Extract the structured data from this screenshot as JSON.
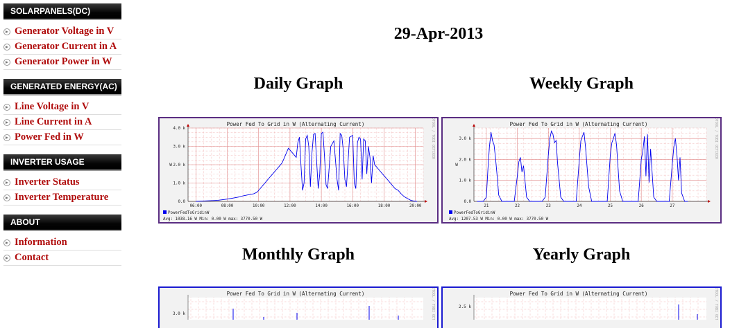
{
  "sidebar": {
    "sections": [
      {
        "title": "SOLARPANELS(DC)",
        "items": [
          "Generator Voltage in V",
          "Generator Current in A",
          "Generator Power in W"
        ]
      },
      {
        "title": "GENERATED ENERGY(AC)",
        "items": [
          "Line Voltage in V",
          "Line Current in A",
          "Power Fed in W"
        ]
      },
      {
        "title": "INVERTER USAGE",
        "items": [
          "Inverter Status",
          "Inverter Temperature"
        ]
      },
      {
        "title": "ABOUT",
        "items": [
          "Information",
          "Contact"
        ]
      }
    ]
  },
  "main": {
    "date": "29-Apr-2013",
    "graph_titles": [
      "Daily Graph",
      "Weekly Graph",
      "Monthly Graph",
      "Yearly Graph"
    ]
  },
  "colors": {
    "link": "#b00c0c",
    "daily_border": "#5a2d82",
    "weekly_border": "#5a2d82",
    "lower_border": "#1a1ad0",
    "series": "#0000ee",
    "grid": "#f0b4b4"
  },
  "chart_data": [
    {
      "type": "line",
      "title": "Power Fed To Grid in W (Alternating Current)",
      "ylabel": "W",
      "y_tick_labels": [
        "0.0",
        "1.0 k",
        "2.0 k",
        "3.0 k",
        "4.0 k"
      ],
      "x_tick_labels": [
        "06:00",
        "08:00",
        "10:00",
        "12:00",
        "14:00",
        "16:00",
        "18:00",
        "20:00"
      ],
      "ylim": [
        0,
        4000
      ],
      "xlim": [
        5.5,
        20.5
      ],
      "legend": "PowerFedToGridinW",
      "stats": "Avg: 1038.16 W    Min:    0.00 W    max: 3770.50 W",
      "side_text": "RRDTOOL / TOBI OETIKER",
      "series": [
        {
          "name": "PowerFedToGridinW",
          "x": [
            6.0,
            6.5,
            7.0,
            7.4,
            7.8,
            8.2,
            8.5,
            8.8,
            9.0,
            9.3,
            9.5,
            9.7,
            9.9,
            10.1,
            10.3,
            10.5,
            10.7,
            10.9,
            11.1,
            11.3,
            11.5,
            11.6,
            11.7,
            11.8,
            11.9,
            12.0,
            12.2,
            12.4,
            12.5,
            12.6,
            12.7,
            12.8,
            12.9,
            13.0,
            13.1,
            13.2,
            13.3,
            13.4,
            13.5,
            13.6,
            13.7,
            13.8,
            13.9,
            14.0,
            14.1,
            14.2,
            14.3,
            14.4,
            14.6,
            14.8,
            15.0,
            15.1,
            15.2,
            15.3,
            15.4,
            15.5,
            15.6,
            15.8,
            16.0,
            16.1,
            16.2,
            16.3,
            16.4,
            16.5,
            16.6,
            16.7,
            16.8,
            16.9,
            17.0,
            17.1,
            17.2,
            17.3,
            17.4,
            17.5,
            17.7,
            17.9,
            18.1,
            18.3,
            18.5,
            18.7,
            18.9,
            19.1,
            19.3,
            19.5,
            19.7,
            19.9,
            20.1
          ],
          "values": [
            0,
            20,
            40,
            60,
            100,
            150,
            200,
            250,
            300,
            350,
            380,
            420,
            500,
            700,
            900,
            1100,
            1300,
            1500,
            1700,
            1900,
            2100,
            2300,
            2500,
            2700,
            2900,
            2800,
            2600,
            2400,
            3200,
            3500,
            2000,
            600,
            1000,
            3400,
            3600,
            3000,
            800,
            2600,
            3650,
            3700,
            2200,
            700,
            1500,
            3700,
            3770,
            2500,
            900,
            700,
            3000,
            3300,
            1200,
            600,
            3700,
            3600,
            2800,
            1200,
            800,
            3500,
            3600,
            1000,
            700,
            3200,
            3500,
            3400,
            1200,
            3400,
            3300,
            1500,
            3000,
            2400,
            1000,
            2500,
            2000,
            1900,
            1700,
            1500,
            1300,
            1100,
            900,
            700,
            600,
            400,
            250,
            150,
            60,
            20,
            0
          ]
        }
      ]
    },
    {
      "type": "line",
      "title": "Power Fed To Grid in W (Alternating Current)",
      "ylabel": "W",
      "y_tick_labels": [
        "0.0",
        "1.0 k",
        "2.0 k",
        "3.0 k"
      ],
      "x_tick_labels": [
        "21",
        "22",
        "23",
        "24",
        "25",
        "26",
        "27"
      ],
      "ylim": [
        0,
        3500
      ],
      "xlim": [
        20.6,
        28.1
      ],
      "legend": "PowerFedToGridinW",
      "stats": "Avg: 1207.53 W    Min:    0.00 W    max: 3770.50 W",
      "side_text": "RRDTOOL / TOBI OETIKER",
      "series": [
        {
          "name": "PowerFedToGridinW",
          "x": [
            20.7,
            20.9,
            21.0,
            21.05,
            21.1,
            21.15,
            21.2,
            21.25,
            21.3,
            21.35,
            21.4,
            21.5,
            21.6,
            21.7,
            21.8,
            21.9,
            22.0,
            22.05,
            22.1,
            22.15,
            22.2,
            22.3,
            22.4,
            22.5,
            22.6,
            22.7,
            22.8,
            22.9,
            23.0,
            23.05,
            23.1,
            23.15,
            23.2,
            23.25,
            23.3,
            23.4,
            23.5,
            23.6,
            23.7,
            23.8,
            23.9,
            24.0,
            24.05,
            24.1,
            24.15,
            24.2,
            24.3,
            24.4,
            24.5,
            24.6,
            24.7,
            24.8,
            24.9,
            25.0,
            25.05,
            25.1,
            25.15,
            25.2,
            25.3,
            25.4,
            25.5,
            25.6,
            25.7,
            25.8,
            25.9,
            26.0,
            26.05,
            26.1,
            26.15,
            26.2,
            26.25,
            26.3,
            26.4,
            26.5,
            26.6,
            26.7,
            26.8,
            26.9,
            27.0,
            27.05,
            27.1,
            27.15,
            27.2,
            27.25,
            27.3,
            27.4,
            27.5
          ],
          "values": [
            0,
            0,
            200,
            1500,
            2600,
            3300,
            2900,
            2700,
            2000,
            1200,
            300,
            0,
            0,
            0,
            0,
            0,
            1200,
            1900,
            2100,
            1400,
            1700,
            200,
            0,
            0,
            0,
            0,
            0,
            200,
            2200,
            3000,
            3350,
            3200,
            2800,
            2900,
            1800,
            200,
            0,
            0,
            0,
            0,
            0,
            2000,
            2900,
            3100,
            3300,
            2600,
            700,
            0,
            0,
            0,
            0,
            0,
            0,
            2200,
            2800,
            3000,
            3250,
            2700,
            500,
            0,
            0,
            0,
            0,
            0,
            0,
            2000,
            2400,
            3100,
            1200,
            3200,
            900,
            2500,
            200,
            0,
            0,
            0,
            0,
            0,
            1800,
            2600,
            3000,
            2200,
            1000,
            2100,
            400,
            0,
            0
          ]
        }
      ]
    },
    {
      "type": "line",
      "title": "Power Fed To Grid in W (Alternating Current)",
      "y_tick_labels": [
        "3.0 k"
      ],
      "side_text": "RRDTOOL / TOBI OETIKER"
    },
    {
      "type": "line",
      "title": "Power Fed To Grid in W (Alternating Current)",
      "y_tick_labels": [
        "2.5 k"
      ],
      "side_text": "RRDTOOL / TOBI OETIKER"
    }
  ]
}
